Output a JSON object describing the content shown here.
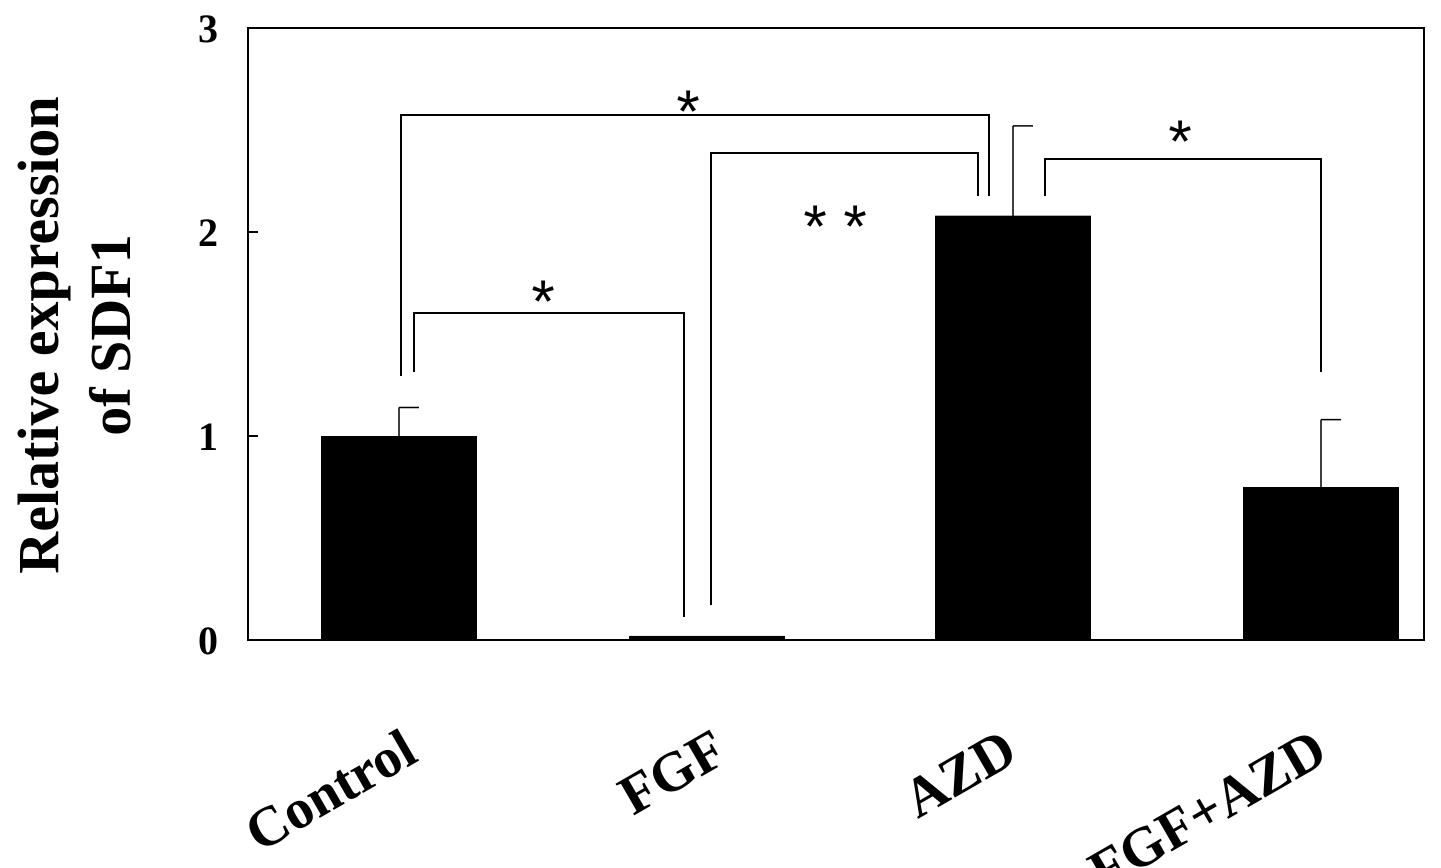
{
  "chart_data": {
    "type": "bar",
    "title": "",
    "xlabel": "",
    "ylabel": [
      "Relative expression",
      "of SDF1"
    ],
    "categories": [
      "Control",
      "FGF",
      "AZD",
      "FGF+AZD"
    ],
    "values": [
      1.0,
      0.02,
      2.08,
      0.75
    ],
    "errors": [
      0.14,
      0.0,
      0.44,
      0.33
    ],
    "ylim": [
      0,
      3
    ],
    "yticks": [
      "0",
      "1",
      "2",
      "3"
    ],
    "bar_color": "#000000",
    "grid": false,
    "legend": "none",
    "significance": [
      {
        "from": "Control",
        "to": "FGF",
        "label": "*"
      },
      {
        "from": "FGF",
        "to": "AZD",
        "label": "* *"
      },
      {
        "from": "Control",
        "to": "AZD",
        "label": "*"
      },
      {
        "from": "AZD",
        "to": "FGF+AZD",
        "label": "*"
      }
    ]
  }
}
